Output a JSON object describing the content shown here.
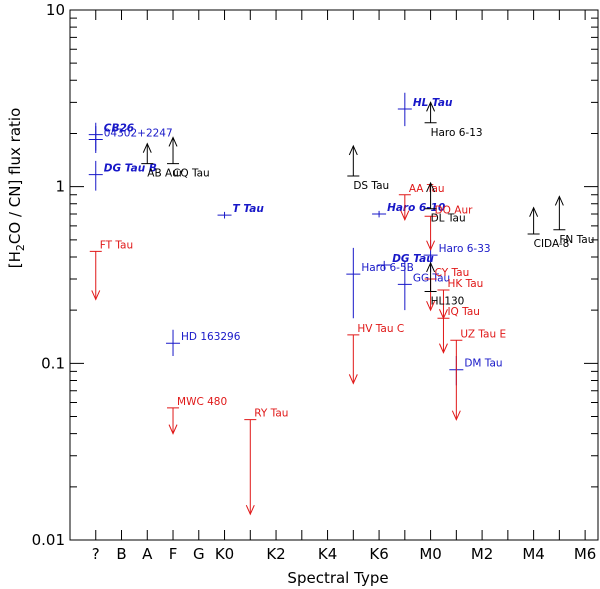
{
  "chart_data": {
    "type": "scatter",
    "xlabel": "Spectral Type",
    "ylabel_prefix": "[H",
    "ylabel_sub": "2",
    "ylabel_suffix": "CO / CN] flux ratio",
    "yscale": "log",
    "ylim": [
      0.01,
      10
    ],
    "xlim": [
      -1,
      19.5
    ],
    "x_categories": [
      "?",
      "B",
      "A",
      "F",
      "G",
      "K0",
      "K2",
      "K4",
      "K6",
      "M0",
      "M2",
      "M4",
      "M6"
    ],
    "x_category_positions": [
      0,
      1,
      2,
      3,
      4,
      5,
      7,
      9,
      11,
      13,
      15,
      17,
      19
    ],
    "y_tick_labels": [
      "0.01",
      "0.1",
      "1",
      "10"
    ],
    "y_tick_values": [
      0.01,
      0.1,
      1,
      10
    ],
    "colors": {
      "detection": "#1818c8",
      "upper_limit": "#e01818",
      "lower_limit": "#000000"
    },
    "detections": [
      {
        "label": "CB26",
        "x": 0.0,
        "y": 1.97,
        "ylo": 1.6,
        "yhi": 2.3,
        "highlight": true
      },
      {
        "label": "04302+2247",
        "x": 0.0,
        "y": 1.85,
        "ylo": 1.55,
        "yhi": 2.2,
        "highlight": false
      },
      {
        "label": "DG Tau B",
        "x": 0.0,
        "y": 1.17,
        "ylo": 0.95,
        "yhi": 1.4,
        "highlight": true
      },
      {
        "label": "T Tau",
        "x": 5.0,
        "y": 0.69,
        "ylo": 0.66,
        "yhi": 0.72,
        "highlight": true
      },
      {
        "label": "HD 163296",
        "x": 3.0,
        "y": 0.13,
        "ylo": 0.11,
        "yhi": 0.155,
        "highlight": false
      },
      {
        "label": "HL Tau",
        "x": 12.0,
        "y": 2.75,
        "ylo": 2.2,
        "yhi": 3.4,
        "highlight": true
      },
      {
        "label": "Haro 6-10",
        "x": 11.0,
        "y": 0.7,
        "ylo": 0.67,
        "yhi": 0.73,
        "highlight": true
      },
      {
        "label": "DG Tau",
        "x": 11.2,
        "y": 0.36,
        "ylo": 0.34,
        "yhi": 0.38,
        "highlight": true
      },
      {
        "label": "Haro 6-5B",
        "x": 10.0,
        "y": 0.32,
        "ylo": 0.18,
        "yhi": 0.45,
        "highlight": false
      },
      {
        "label": "GG Tau",
        "x": 12.0,
        "y": 0.28,
        "ylo": 0.2,
        "yhi": 0.38,
        "highlight": false
      },
      {
        "label": "Haro 6-33",
        "x": 13.0,
        "y": 0.41,
        "ylo": 0.33,
        "yhi": 0.5,
        "highlight": false
      },
      {
        "label": "DM Tau",
        "x": 14.0,
        "y": 0.092,
        "ylo": 0.075,
        "yhi": 0.11,
        "highlight": false
      }
    ],
    "upper_limits": [
      {
        "label": "FT Tau",
        "x": 0.0,
        "y": 0.43,
        "y_end": 0.23
      },
      {
        "label": "MWC 480",
        "x": 3.0,
        "y": 0.056,
        "y_end": 0.04
      },
      {
        "label": "RY Tau",
        "x": 6.0,
        "y": 0.048,
        "y_end": 0.014
      },
      {
        "label": "HV Tau C",
        "x": 10.0,
        "y": 0.145,
        "y_end": 0.077
      },
      {
        "label": "AA Tau",
        "x": 12.0,
        "y": 0.9,
        "y_end": 0.65
      },
      {
        "label": "DO Aur",
        "x": 13.0,
        "y": 0.68,
        "y_end": 0.44
      },
      {
        "label": "CY Tau",
        "x": 13.0,
        "y": 0.3,
        "y_end": 0.2
      },
      {
        "label": "HK Tau",
        "x": 13.5,
        "y": 0.26,
        "y_end": 0.18
      },
      {
        "label": "IQ Tau",
        "x": 13.5,
        "y": 0.18,
        "y_end": 0.115
      },
      {
        "label": "UZ Tau E",
        "x": 14.0,
        "y": 0.135,
        "y_end": 0.048
      }
    ],
    "lower_limits": [
      {
        "label": "AB Aur",
        "x": 2.0,
        "y": 1.35,
        "y_end": 1.75
      },
      {
        "label": "CQ Tau",
        "x": 3.0,
        "y": 1.35,
        "y_end": 1.9
      },
      {
        "label": "Haro 6-13",
        "x": 13.0,
        "y": 2.3,
        "y_end": 3.0
      },
      {
        "label": "DS Tau",
        "x": 10.0,
        "y": 1.15,
        "y_end": 1.7
      },
      {
        "label": "DL Tau",
        "x": 13.0,
        "y": 0.75,
        "y_end": 1.05
      },
      {
        "label": "CIDA-8",
        "x": 17.0,
        "y": 0.54,
        "y_end": 0.76
      },
      {
        "label": "FN Tau",
        "x": 18.0,
        "y": 0.57,
        "y_end": 0.88
      },
      {
        "label": "HL130",
        "x": 13.0,
        "y": 0.255,
        "y_end": 0.37
      }
    ]
  }
}
